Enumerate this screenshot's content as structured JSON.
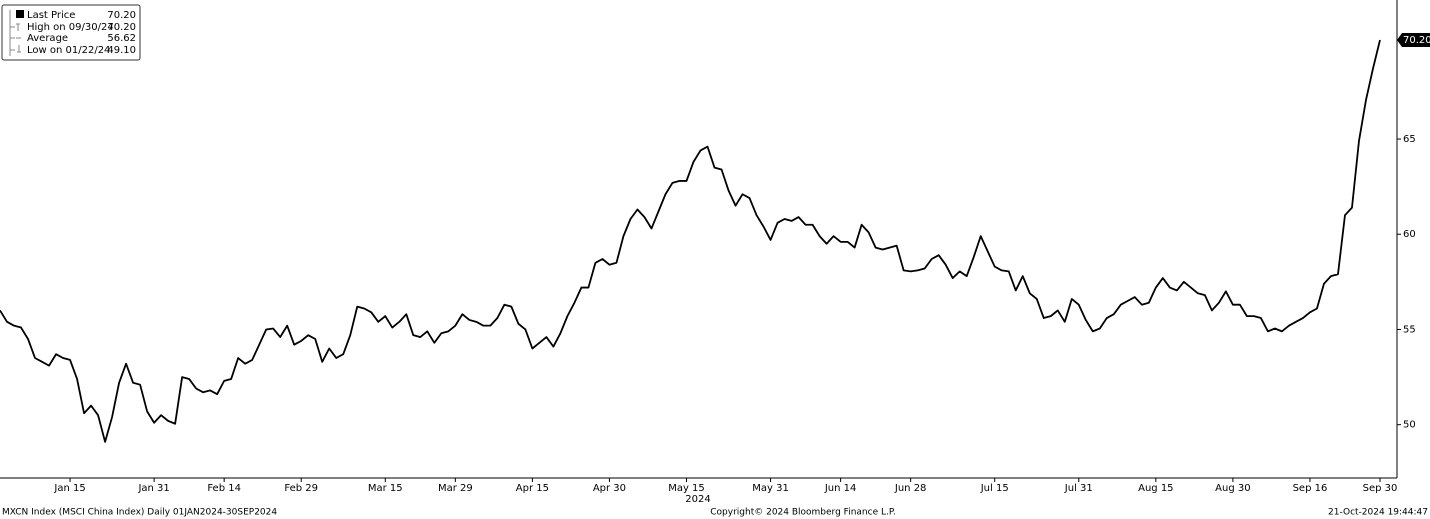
{
  "chart_data": {
    "type": "line",
    "x_year_label": "2024",
    "xlim": [
      0,
      197
    ],
    "xticks": [
      {
        "value": 10,
        "label": "Jan 15"
      },
      {
        "value": 22,
        "label": "Jan 31"
      },
      {
        "value": 32,
        "label": "Feb 14"
      },
      {
        "value": 43,
        "label": "Feb 29"
      },
      {
        "value": 55,
        "label": "Mar 15"
      },
      {
        "value": 65,
        "label": "Mar 29"
      },
      {
        "value": 76,
        "label": "Apr 15"
      },
      {
        "value": 87,
        "label": "Apr 30"
      },
      {
        "value": 98,
        "label": "May 15"
      },
      {
        "value": 110,
        "label": "May 31"
      },
      {
        "value": 120,
        "label": "Jun 14"
      },
      {
        "value": 130,
        "label": "Jun 28"
      },
      {
        "value": 142,
        "label": "Jul 15"
      },
      {
        "value": 154,
        "label": "Jul 31"
      },
      {
        "value": 165,
        "label": "Aug 15"
      },
      {
        "value": 176,
        "label": "Aug 30"
      },
      {
        "value": 187,
        "label": "Sep 16"
      },
      {
        "value": 197,
        "label": "Sep 30"
      }
    ],
    "ylim": [
      47.2,
      72.3
    ],
    "yticks": [
      50,
      55,
      60,
      65
    ],
    "last_price_tag": {
      "value": 70.2,
      "label": "70.20"
    },
    "series": [
      {
        "name": "Last Price",
        "color": "#000000",
        "values": [
          56.0,
          55.4,
          55.2,
          55.1,
          54.5,
          53.5,
          53.3,
          53.1,
          53.7,
          53.5,
          53.4,
          52.4,
          50.6,
          51.0,
          50.5,
          49.1,
          50.4,
          52.2,
          53.2,
          52.2,
          52.1,
          50.7,
          50.1,
          50.5,
          50.2,
          50.05,
          52.5,
          52.4,
          51.9,
          51.7,
          51.8,
          51.6,
          52.3,
          52.4,
          53.5,
          53.2,
          53.4,
          54.2,
          55.0,
          55.05,
          54.6,
          55.2,
          54.2,
          54.4,
          54.7,
          54.5,
          53.3,
          54.0,
          53.5,
          53.7,
          54.7,
          56.2,
          56.1,
          55.9,
          55.4,
          55.7,
          55.1,
          55.4,
          55.8,
          54.7,
          54.6,
          54.9,
          54.3,
          54.8,
          54.9,
          55.2,
          55.8,
          55.5,
          55.4,
          55.2,
          55.2,
          55.6,
          56.3,
          56.2,
          55.3,
          55.0,
          54.0,
          54.3,
          54.6,
          54.1,
          54.8,
          55.7,
          56.4,
          57.2,
          57.2,
          58.5,
          58.7,
          58.4,
          58.5,
          59.9,
          60.8,
          61.3,
          60.9,
          60.3,
          61.2,
          62.1,
          62.7,
          62.8,
          62.8,
          63.8,
          64.4,
          64.6,
          63.5,
          63.4,
          62.3,
          61.5,
          62.1,
          61.9,
          61.0,
          60.4,
          59.7,
          60.6,
          60.8,
          60.7,
          60.9,
          60.5,
          60.5,
          59.9,
          59.5,
          59.9,
          59.6,
          59.6,
          59.3,
          60.5,
          60.1,
          59.3,
          59.2,
          59.3,
          59.4,
          58.1,
          58.05,
          58.1,
          58.2,
          58.7,
          58.9,
          58.4,
          57.7,
          58.05,
          57.8,
          58.8,
          59.9,
          59.1,
          58.3,
          58.1,
          58.05,
          57.05,
          57.8,
          56.9,
          56.6,
          55.6,
          55.7,
          56.0,
          55.4,
          56.6,
          56.3,
          55.5,
          54.9,
          55.05,
          55.6,
          55.8,
          56.3,
          56.5,
          56.7,
          56.3,
          56.4,
          57.2,
          57.7,
          57.2,
          57.05,
          57.5,
          57.2,
          56.9,
          56.8,
          56.0,
          56.4,
          57.0,
          56.3,
          56.3,
          55.7,
          55.7,
          55.6,
          54.9,
          55.05,
          54.9,
          55.2,
          55.4,
          55.6,
          55.9,
          56.1,
          57.4,
          57.8,
          57.9,
          61.0,
          61.4,
          64.9,
          67.05,
          68.7,
          70.2
        ]
      }
    ],
    "legend": [
      {
        "label": "Last Price",
        "value": "70.20"
      },
      {
        "label": "High on 09/30/24",
        "value": "70.20"
      },
      {
        "label": "Average",
        "value": "56.62"
      },
      {
        "label": "Low on 01/22/24",
        "value": "49.10"
      }
    ],
    "footer": {
      "left": "MXCN Index (MSCI China Index)  Daily 01JAN2024-30SEP2024",
      "center": "Copyright© 2024 Bloomberg Finance L.P.",
      "right": "21-Oct-2024 19:44:47"
    }
  }
}
